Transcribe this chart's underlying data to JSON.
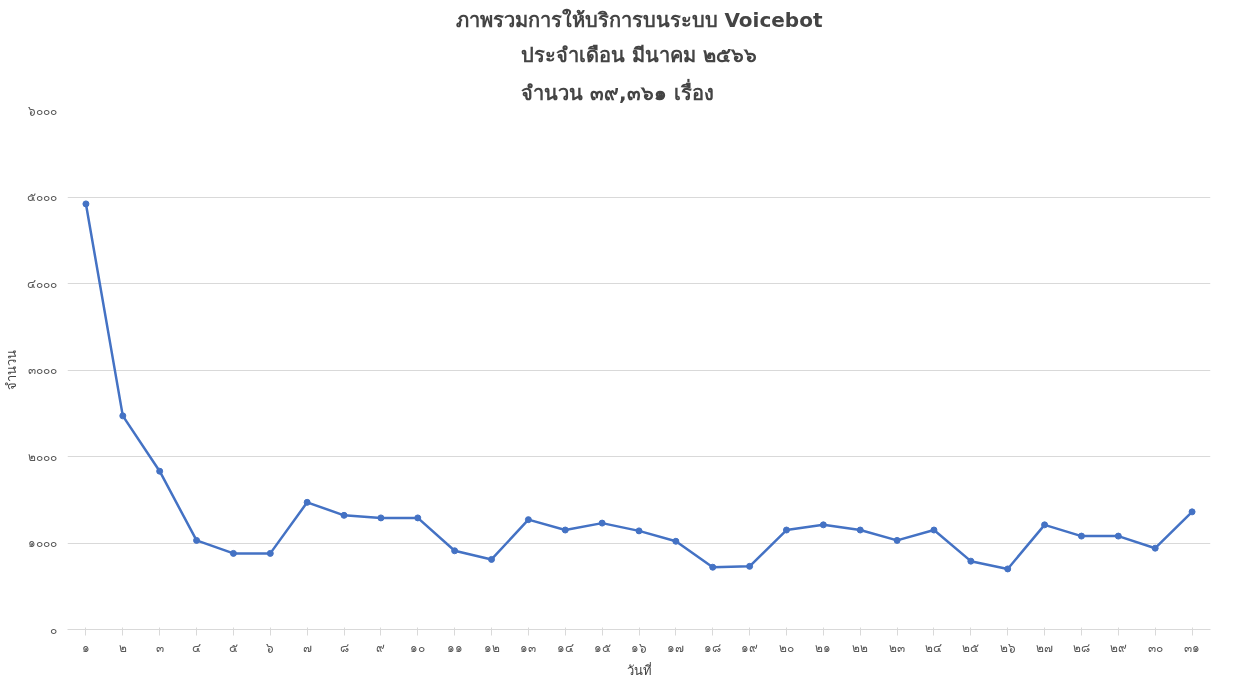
{
  "chart_data": {
    "type": "line",
    "title": "ภาพรวมการให้บริการบนระบบ Voicebot",
    "subtitle": "ประจำเดือน มีนาคม ๒๕๖๖\nจำนวน ๓๙,๓๖๑ เรื่อง",
    "xlabel": "วันที่",
    "ylabel": "จำนวน",
    "categories": [
      "๑",
      "๒",
      "๓",
      "๔",
      "๕",
      "๖",
      "๗",
      "๘",
      "๙",
      "๑๐",
      "๑๑",
      "๑๒",
      "๑๓",
      "๑๔",
      "๑๕",
      "๑๖",
      "๑๗",
      "๑๘",
      "๑๙",
      "๒๐",
      "๒๑",
      "๒๒",
      "๒๓",
      "๒๔",
      "๒๕",
      "๒๖",
      "๒๗",
      "๒๘",
      "๒๙",
      "๓๐",
      "๓๑"
    ],
    "series": [
      {
        "color": "#4472c4",
        "values": [
          4920,
          2470,
          1830,
          1030,
          880,
          880,
          1470,
          1320,
          1290,
          1290,
          910,
          810,
          1270,
          1150,
          1230,
          1140,
          1020,
          720,
          730,
          1150,
          1210,
          1150,
          1030,
          1150,
          790,
          700,
          1210,
          1080,
          1080,
          940,
          1360
        ]
      }
    ],
    "ylim": [
      0,
      6000
    ],
    "yticks": [
      {
        "value": 0,
        "label": "๐"
      },
      {
        "value": 1000,
        "label": "๑๐๐๐"
      },
      {
        "value": 2000,
        "label": "๒๐๐๐"
      },
      {
        "value": 3000,
        "label": "๓๐๐๐"
      },
      {
        "value": 4000,
        "label": "๔๐๐๐"
      },
      {
        "value": 5000,
        "label": "๕๐๐๐"
      },
      {
        "value": 6000,
        "label": "๖๐๐๐"
      }
    ],
    "grid": "y",
    "marker": "circle",
    "line_style": "solid"
  }
}
